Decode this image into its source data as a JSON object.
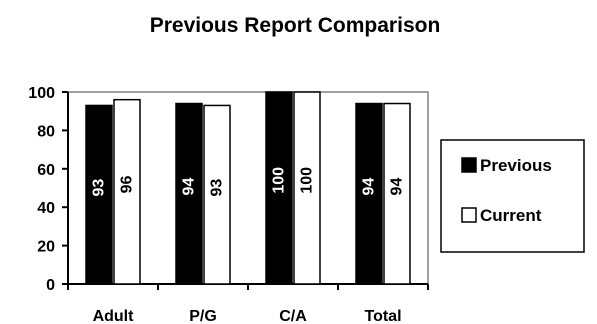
{
  "chart_data": {
    "type": "bar",
    "title": "Previous Report Comparison",
    "xlabel": "",
    "ylabel": "",
    "categories": [
      "Adult",
      "P/G",
      "C/A",
      "Total"
    ],
    "series": [
      {
        "name": "Previous",
        "values": [
          93,
          94,
          100,
          94
        ],
        "color": "#000000"
      },
      {
        "name": "Current",
        "values": [
          96,
          93,
          100,
          94
        ],
        "color": "#ffffff"
      }
    ],
    "ylim": [
      0,
      100
    ],
    "yticks": [
      0,
      20,
      40,
      60,
      80,
      100
    ],
    "data_labels": "rotated inside bars",
    "grid": false,
    "legend_position": "right"
  }
}
